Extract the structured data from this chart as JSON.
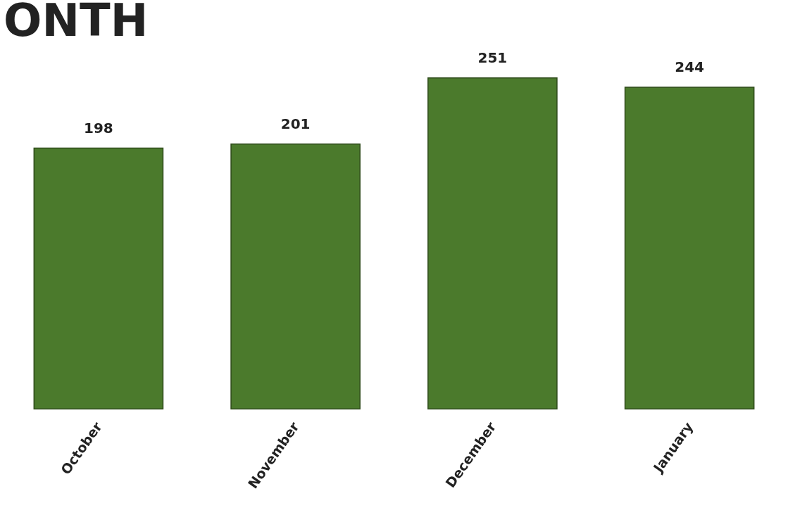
{
  "chart_data": {
    "type": "bar",
    "title": "ONTH",
    "categories": [
      "October",
      "November",
      "December",
      "January"
    ],
    "values": [
      198,
      201,
      251,
      244
    ],
    "color": "#4b7a2c",
    "data_labels": true
  }
}
